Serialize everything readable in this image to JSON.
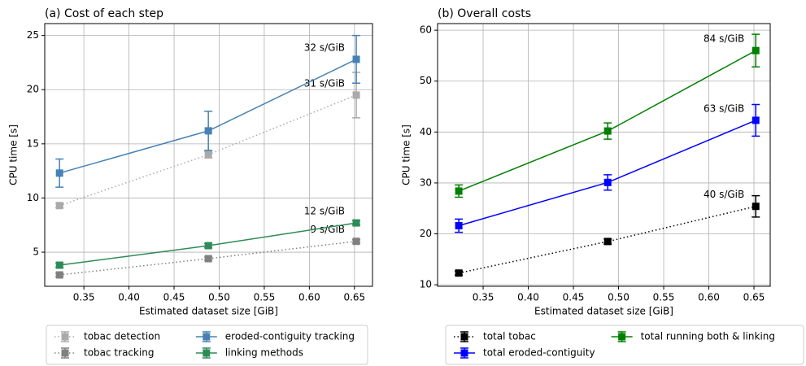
{
  "chart_data": [
    {
      "type": "line",
      "title": "(a) Cost of each step",
      "x_label": "Estimated dataset size [GiB]",
      "y_label": "CPU time [s]",
      "x": [
        0.323,
        0.488,
        0.652
      ],
      "xlim": [
        0.3066,
        0.67
      ],
      "ylim": [
        1.85,
        26.1
      ],
      "xticks": [
        0.35,
        {
          "value": 0.4,
          "label": "0.40"
        },
        0.45,
        {
          "value": 0.5,
          "label": "0.50"
        },
        0.55,
        {
          "value": 0.6,
          "label": "0.60"
        },
        0.65
      ],
      "yticks": [
        5,
        10,
        15,
        20,
        25
      ],
      "grid": true,
      "legend_columns": 2,
      "series": [
        {
          "name": "tobac detection",
          "color": "#aaaaaa",
          "linestyle": "dotted",
          "values": [
            9.3,
            14.0,
            19.5
          ],
          "errors": [
            0.2,
            0.3,
            2.1
          ],
          "annotation": "31 s/GiB"
        },
        {
          "name": "tobac tracking",
          "color": "#808080",
          "linestyle": "dotted",
          "values": [
            2.9,
            4.4,
            6.0
          ],
          "errors": [
            0.15,
            0.15,
            0.15
          ],
          "annotation": "9 s/GiB"
        },
        {
          "name": "eroded-contiguity tracking",
          "color": "#4682b4",
          "linestyle": "solid",
          "values": [
            12.3,
            16.2,
            22.8
          ],
          "errors": [
            1.3,
            1.8,
            2.2
          ],
          "annotation": "32 s/GiB"
        },
        {
          "name": "linking methods",
          "color": "#2e8b57",
          "linestyle": "solid",
          "values": [
            3.8,
            5.6,
            7.7
          ],
          "errors": [
            0.2,
            0.2,
            0.2
          ],
          "annotation": "12 s/GiB"
        }
      ]
    },
    {
      "type": "line",
      "title": "(b) Overall costs",
      "x_label": "Estimated dataset size [GiB]",
      "y_label": "CPU time [s]",
      "x": [
        0.323,
        0.488,
        0.652
      ],
      "xlim": [
        0.2995,
        0.668
      ],
      "ylim": [
        9.7,
        61.3
      ],
      "xticks": [
        0.35,
        {
          "value": 0.4,
          "label": "0.40"
        },
        0.45,
        {
          "value": 0.5,
          "label": "0.50"
        },
        0.55,
        {
          "value": 0.6,
          "label": "0.60"
        },
        0.65
      ],
      "yticks": [
        10,
        20,
        30,
        40,
        50,
        60
      ],
      "grid": true,
      "legend_columns": 2,
      "series": [
        {
          "name": "total tobac",
          "color": "#000000",
          "linestyle": "dotted",
          "values": [
            12.3,
            18.5,
            25.4
          ],
          "errors": [
            0.4,
            0.5,
            2.1
          ],
          "annotation": "40 s/GiB"
        },
        {
          "name": "total eroded-contiguity",
          "color": "#0000ff",
          "linestyle": "solid",
          "values": [
            21.6,
            30.1,
            42.3
          ],
          "errors": [
            1.3,
            1.5,
            3.1
          ],
          "annotation": "63 s/GiB"
        },
        {
          "name": "total running both & linking",
          "color": "#008000",
          "linestyle": "solid",
          "values": [
            28.4,
            40.2,
            56.0
          ],
          "errors": [
            1.2,
            1.6,
            3.2
          ],
          "annotation": "84 s/GiB"
        }
      ]
    }
  ]
}
